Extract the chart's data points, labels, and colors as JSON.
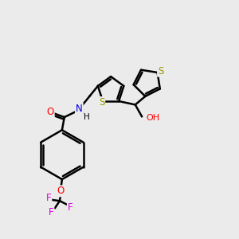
{
  "bg_color": "#ebebeb",
  "bond_color": "#000000",
  "bond_width": 1.8,
  "atom_colors": {
    "S": "#999900",
    "O": "#ff0000",
    "N": "#0000ee",
    "F": "#dd00dd",
    "C": "#000000",
    "H": "#000000"
  },
  "font_size": 8.5,
  "figsize": [
    3.0,
    3.0
  ],
  "dpi": 100
}
